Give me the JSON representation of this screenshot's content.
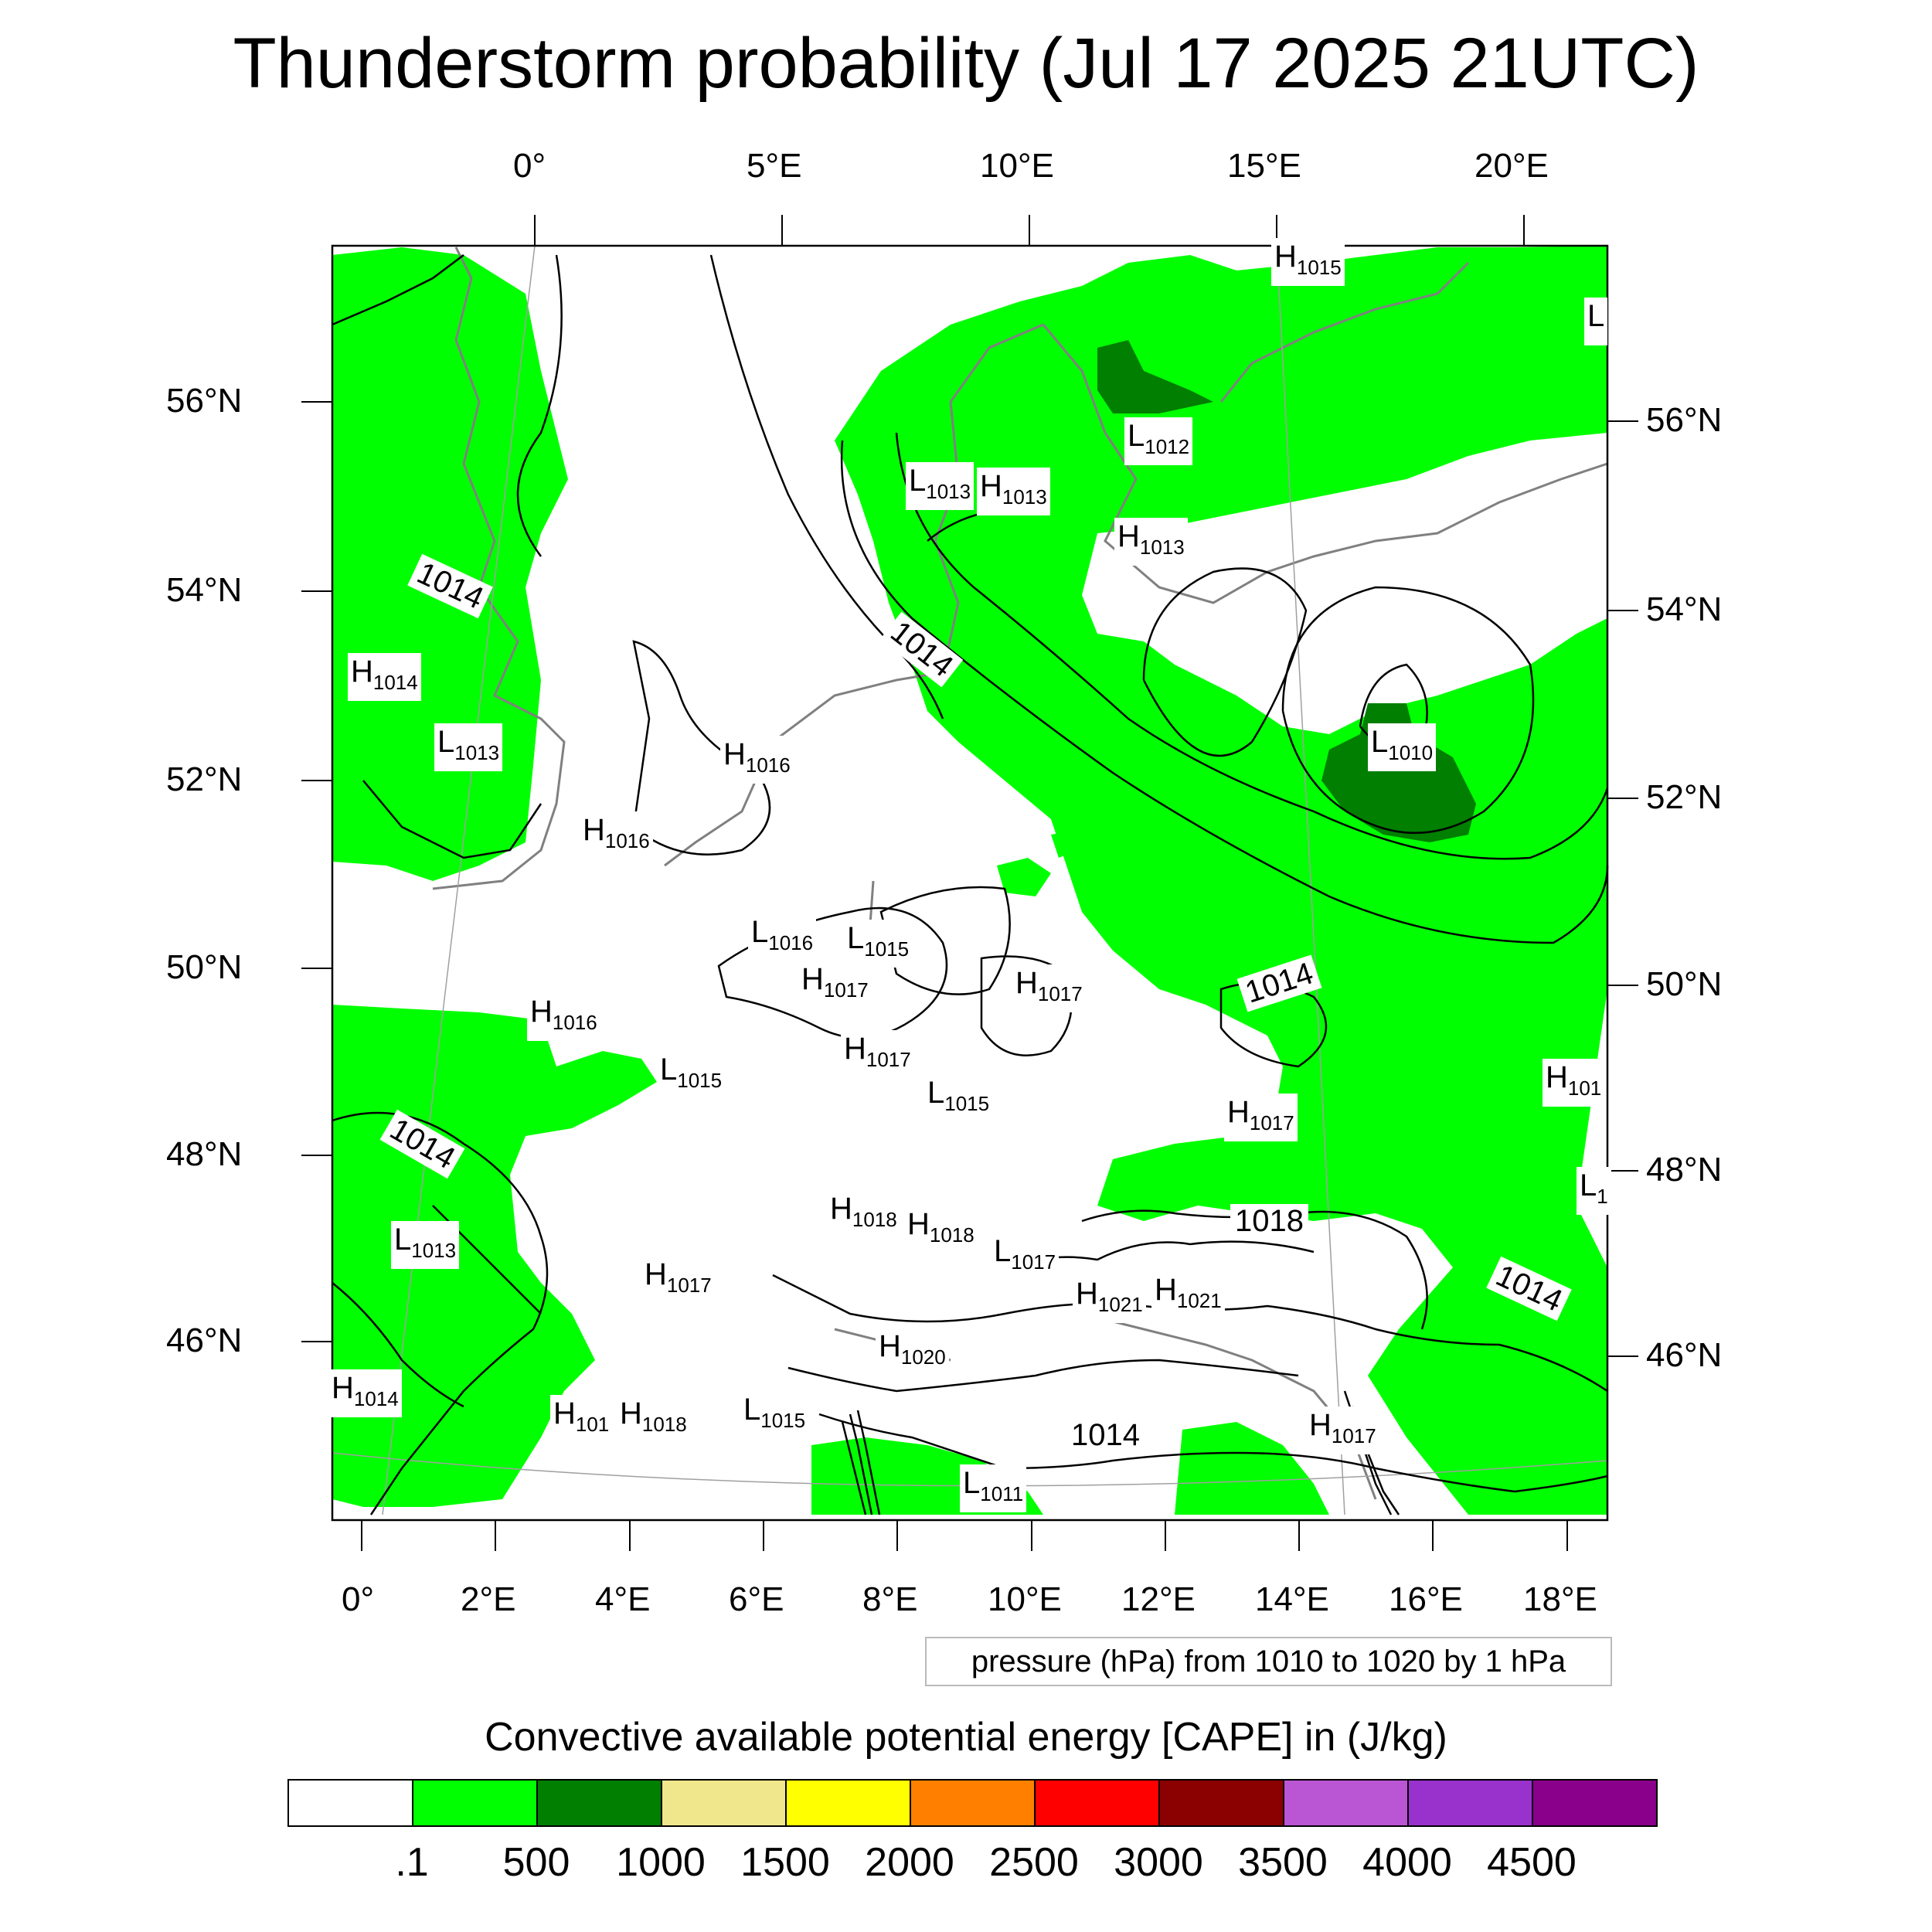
{
  "title": "Thunderstorm probability (Jul 17 2025 21UTC)",
  "top_axis_labels": [
    "0°",
    "5°E",
    "10°E",
    "15°E",
    "20°E"
  ],
  "left_axis_labels": [
    "56°N",
    "54°N",
    "52°N",
    "50°N",
    "48°N",
    "46°N"
  ],
  "right_axis_labels": [
    "56°N",
    "54°N",
    "52°N",
    "50°N",
    "48°N",
    "46°N"
  ],
  "bottom_axis_labels": [
    "0°",
    "2°E",
    "4°E",
    "6°E",
    "8°E",
    "10°E",
    "12°E",
    "14°E",
    "16°E",
    "18°E"
  ],
  "pressure_note": "pressure (hPa) from 1010 to 1020 by 1 hPa",
  "cape_title": "Convective available potential energy [CAPE] in (J/kg)",
  "colorbar": {
    "colors": [
      "#ffffff",
      "#00ff00",
      "#007f00",
      "#f0e68c",
      "#ffff00",
      "#ff8000",
      "#ff0000",
      "#8b0000",
      "#ba55d3",
      "#9932cc",
      "#8b008b"
    ],
    "labels": [
      ".1",
      "500",
      "1000",
      "1500",
      "2000",
      "2500",
      "3000",
      "3500",
      "4000",
      "4500"
    ]
  },
  "map": {
    "cape_fill_color": "#00ff00",
    "cape_high_color": "#007f00",
    "coastline_color": "#808080",
    "isobar_color": "#000000"
  },
  "pressure_centers": [
    {
      "letter": "H",
      "value": "1015"
    },
    {
      "letter": "L",
      "value": "1012"
    },
    {
      "letter": "L",
      "value": "1013"
    },
    {
      "letter": "H",
      "value": "1013"
    },
    {
      "letter": "H",
      "value": "1013"
    },
    {
      "letter": "H",
      "value": "1014"
    },
    {
      "letter": "L",
      "value": "1013"
    },
    {
      "letter": "H",
      "value": "1016"
    },
    {
      "letter": "H",
      "value": "1016"
    },
    {
      "letter": "L",
      "value": "1010"
    },
    {
      "letter": "L",
      "value": "1016"
    },
    {
      "letter": "L",
      "value": "1015"
    },
    {
      "letter": "H",
      "value": "1017"
    },
    {
      "letter": "H",
      "value": "1016"
    },
    {
      "letter": "H",
      "value": "1017"
    },
    {
      "letter": "L",
      "value": "1015"
    },
    {
      "letter": "H",
      "value": "1017"
    },
    {
      "letter": "L",
      "value": "1015"
    },
    {
      "letter": "H",
      "value": "1017"
    },
    {
      "letter": "H",
      "value": "101"
    },
    {
      "letter": "L",
      "value": "1013"
    },
    {
      "letter": "H",
      "value": "1018"
    },
    {
      "letter": "H",
      "value": "1018"
    },
    {
      "letter": "L",
      "value": "1017"
    },
    {
      "letter": "H",
      "value": "1017"
    },
    {
      "letter": "H",
      "value": "1021"
    },
    {
      "letter": "H",
      "value": "1021"
    },
    {
      "letter": "H",
      "value": "1020"
    },
    {
      "letter": "H",
      "value": "1014"
    },
    {
      "letter": "H",
      "value": "101"
    },
    {
      "letter": "H",
      "value": "1018"
    },
    {
      "letter": "L",
      "value": "1015"
    },
    {
      "letter": "L",
      "value": "1011"
    },
    {
      "letter": "H",
      "value": "1017"
    },
    {
      "letter": "L",
      "value": "1"
    },
    {
      "letter": "L",
      "value": ""
    }
  ],
  "isobar_labels": [
    "1014",
    "1014",
    "1014",
    "1014",
    "1014",
    "1018",
    "1014"
  ]
}
